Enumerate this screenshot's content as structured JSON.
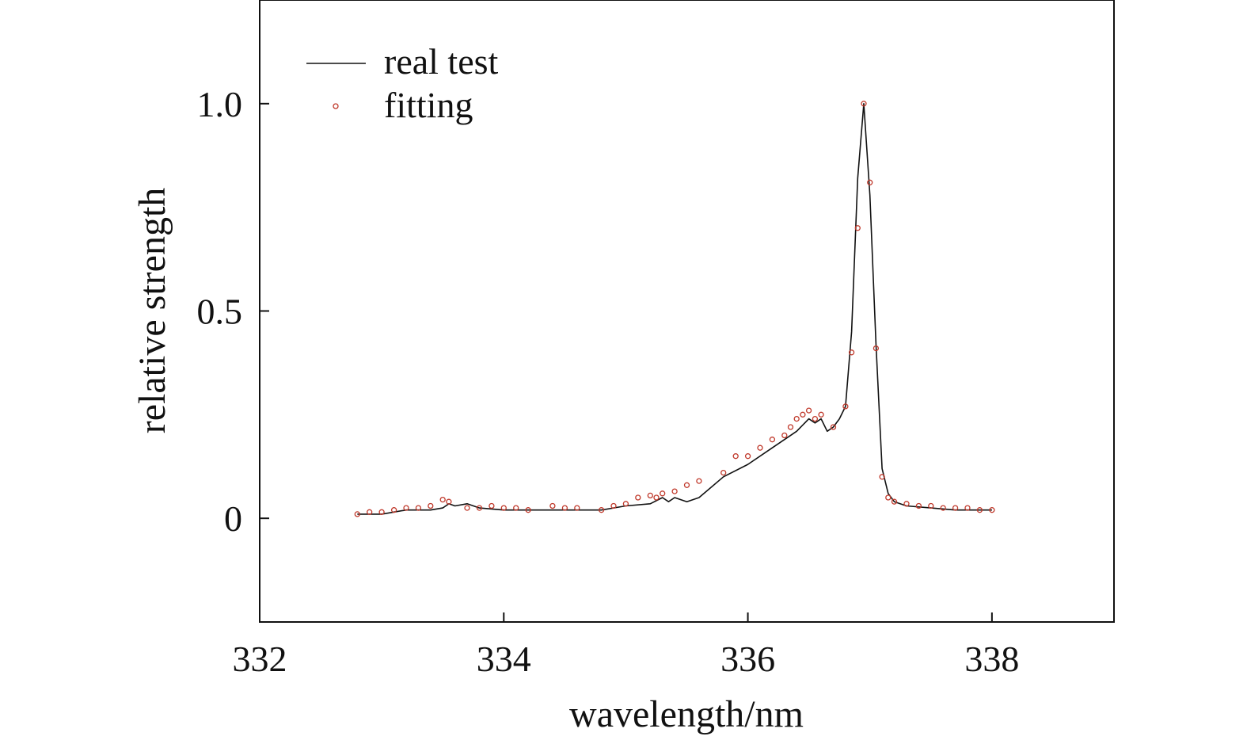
{
  "chart_data": {
    "type": "line",
    "xlabel": "wavelength/nm",
    "ylabel": "relative strength",
    "xlim": [
      332,
      339
    ],
    "ylim": [
      -0.25,
      1.25
    ],
    "xticks": [
      {
        "value": 332,
        "label": "332"
      },
      {
        "value": 334,
        "label": "334"
      },
      {
        "value": 336,
        "label": "336"
      },
      {
        "value": 338,
        "label": "338"
      }
    ],
    "yticks": [
      {
        "value": 0,
        "label": "0"
      },
      {
        "value": 0.5,
        "label": "0.5"
      },
      {
        "value": 1.0,
        "label": "1.0"
      }
    ],
    "grid": false,
    "legend": {
      "position": "top-left"
    },
    "series": [
      {
        "name": "real test",
        "style": "line",
        "color": "#111111",
        "x": [
          332.8,
          333.0,
          333.2,
          333.4,
          333.5,
          333.55,
          333.6,
          333.7,
          333.8,
          334.0,
          334.2,
          334.4,
          334.6,
          334.8,
          335.0,
          335.2,
          335.3,
          335.35,
          335.4,
          335.5,
          335.6,
          335.8,
          336.0,
          336.2,
          336.4,
          336.5,
          336.55,
          336.6,
          336.65,
          336.7,
          336.75,
          336.8,
          336.85,
          336.9,
          336.95,
          337.0,
          337.05,
          337.1,
          337.15,
          337.2,
          337.3,
          337.5,
          337.7,
          337.9,
          338.0
        ],
        "y": [
          0.01,
          0.01,
          0.02,
          0.02,
          0.025,
          0.035,
          0.03,
          0.035,
          0.025,
          0.02,
          0.02,
          0.02,
          0.02,
          0.02,
          0.03,
          0.035,
          0.05,
          0.04,
          0.05,
          0.04,
          0.05,
          0.1,
          0.13,
          0.17,
          0.21,
          0.24,
          0.23,
          0.24,
          0.21,
          0.22,
          0.24,
          0.27,
          0.45,
          0.82,
          1.0,
          0.78,
          0.42,
          0.12,
          0.06,
          0.04,
          0.03,
          0.025,
          0.02,
          0.02,
          0.02
        ]
      },
      {
        "name": "fitting",
        "style": "markers",
        "color": "#c0392b",
        "x": [
          332.8,
          332.9,
          333.0,
          333.1,
          333.2,
          333.3,
          333.4,
          333.5,
          333.55,
          333.7,
          333.8,
          333.9,
          334.0,
          334.1,
          334.2,
          334.4,
          334.5,
          334.6,
          334.8,
          334.9,
          335.0,
          335.1,
          335.2,
          335.25,
          335.3,
          335.4,
          335.5,
          335.6,
          335.8,
          335.9,
          336.0,
          336.1,
          336.2,
          336.3,
          336.35,
          336.4,
          336.45,
          336.5,
          336.55,
          336.6,
          336.7,
          336.8,
          336.85,
          336.9,
          336.95,
          337.0,
          337.05,
          337.1,
          337.15,
          337.2,
          337.3,
          337.4,
          337.5,
          337.6,
          337.7,
          337.8,
          337.9,
          338.0
        ],
        "y": [
          0.01,
          0.015,
          0.015,
          0.02,
          0.025,
          0.025,
          0.03,
          0.045,
          0.04,
          0.025,
          0.025,
          0.03,
          0.025,
          0.025,
          0.02,
          0.03,
          0.025,
          0.025,
          0.02,
          0.03,
          0.035,
          0.05,
          0.055,
          0.05,
          0.06,
          0.065,
          0.08,
          0.09,
          0.11,
          0.15,
          0.15,
          0.17,
          0.19,
          0.2,
          0.22,
          0.24,
          0.25,
          0.26,
          0.24,
          0.25,
          0.22,
          0.27,
          0.4,
          0.7,
          1.0,
          0.81,
          0.41,
          0.1,
          0.05,
          0.04,
          0.035,
          0.03,
          0.03,
          0.025,
          0.025,
          0.025,
          0.02,
          0.02
        ]
      }
    ]
  }
}
